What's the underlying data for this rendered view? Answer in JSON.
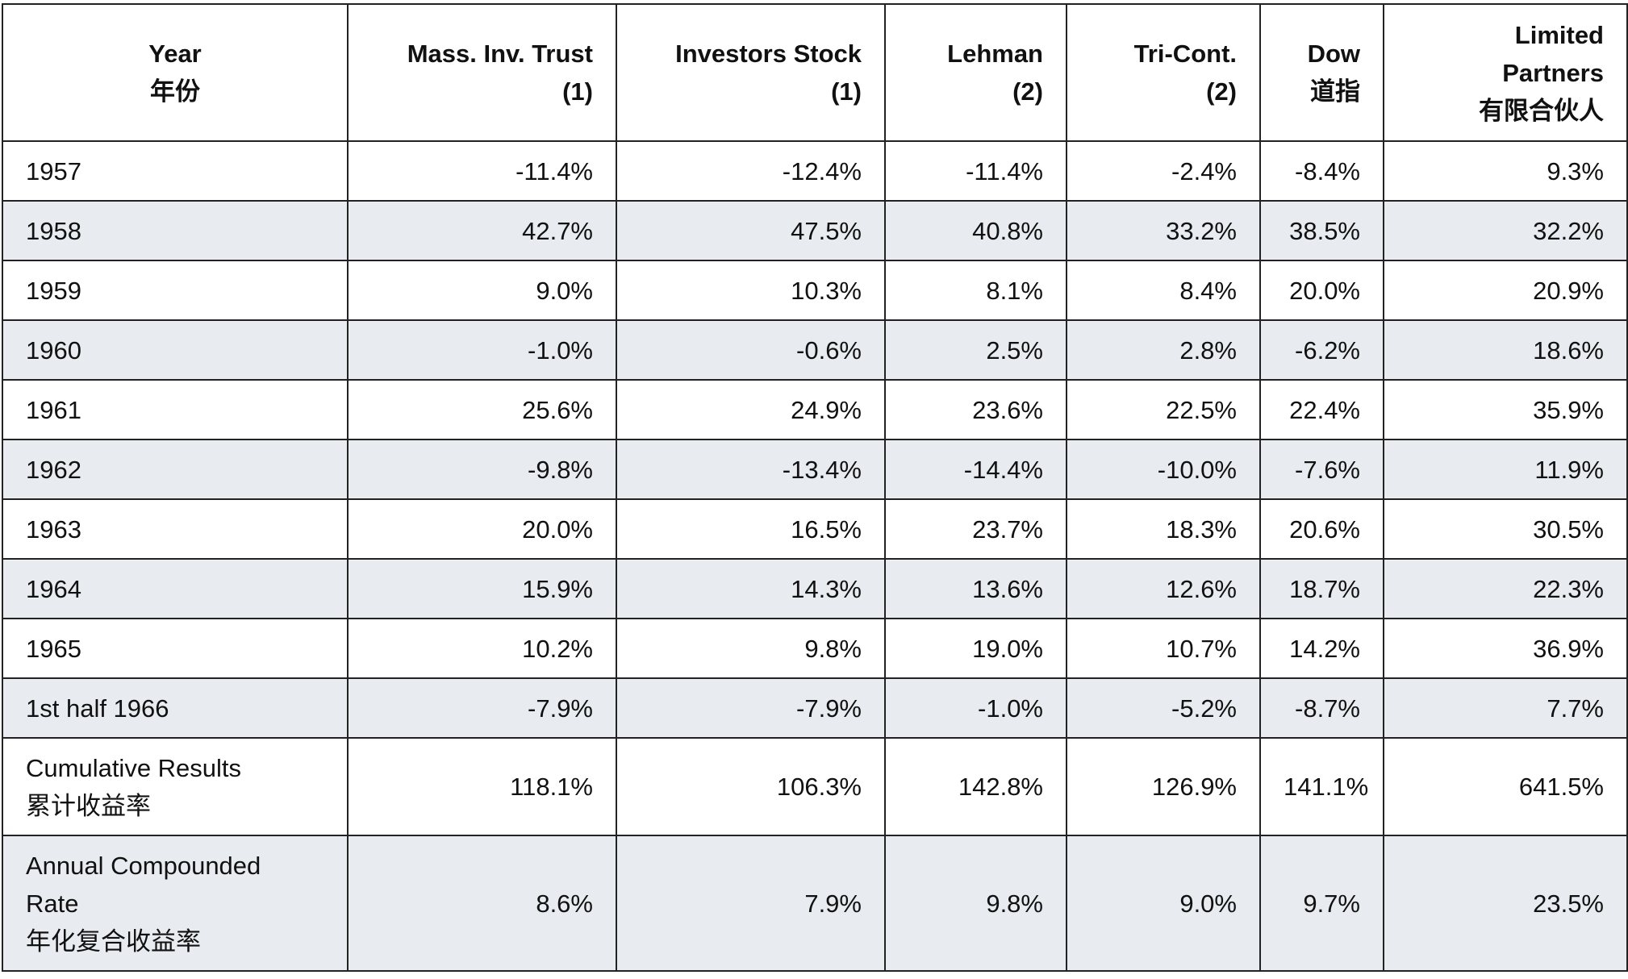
{
  "table": {
    "headers": [
      {
        "lines": [
          "Year",
          "年份"
        ]
      },
      {
        "lines": [
          "Mass. Inv. Trust",
          "(1)"
        ]
      },
      {
        "lines": [
          "Investors Stock",
          "(1)"
        ]
      },
      {
        "lines": [
          "Lehman",
          "(2)"
        ]
      },
      {
        "lines": [
          "Tri-Cont.",
          "(2)"
        ]
      },
      {
        "lines": [
          "Dow",
          "道指"
        ]
      },
      {
        "lines": [
          "Limited",
          "Partners",
          "有限合伙人"
        ]
      }
    ],
    "rows": [
      {
        "label": [
          "1957"
        ],
        "values": [
          "-11.4%",
          "-12.4%",
          "-11.4%",
          "-2.4%",
          "-8.4%",
          "9.3%"
        ]
      },
      {
        "label": [
          "1958"
        ],
        "values": [
          "42.7%",
          "47.5%",
          "40.8%",
          "33.2%",
          "38.5%",
          "32.2%"
        ]
      },
      {
        "label": [
          "1959"
        ],
        "values": [
          "9.0%",
          "10.3%",
          "8.1%",
          "8.4%",
          "20.0%",
          "20.9%"
        ]
      },
      {
        "label": [
          "1960"
        ],
        "values": [
          "-1.0%",
          "-0.6%",
          "2.5%",
          "2.8%",
          "-6.2%",
          "18.6%"
        ]
      },
      {
        "label": [
          "1961"
        ],
        "values": [
          "25.6%",
          "24.9%",
          "23.6%",
          "22.5%",
          "22.4%",
          "35.9%"
        ]
      },
      {
        "label": [
          "1962"
        ],
        "values": [
          "-9.8%",
          "-13.4%",
          "-14.4%",
          "-10.0%",
          "-7.6%",
          "11.9%"
        ]
      },
      {
        "label": [
          "1963"
        ],
        "values": [
          "20.0%",
          "16.5%",
          "23.7%",
          "18.3%",
          "20.6%",
          "30.5%"
        ]
      },
      {
        "label": [
          "1964"
        ],
        "values": [
          "15.9%",
          "14.3%",
          "13.6%",
          "12.6%",
          "18.7%",
          "22.3%"
        ]
      },
      {
        "label": [
          "1965"
        ],
        "values": [
          "10.2%",
          "9.8%",
          "19.0%",
          "10.7%",
          "14.2%",
          "36.9%"
        ]
      },
      {
        "label": [
          "1st half 1966"
        ],
        "values": [
          "-7.9%",
          "-7.9%",
          "-1.0%",
          "-5.2%",
          "-8.7%",
          "7.7%"
        ]
      },
      {
        "label": [
          "Cumulative Results",
          "累计收益率"
        ],
        "values": [
          "118.1%",
          "106.3%",
          "142.8%",
          "126.9%",
          "141.1%",
          "641.5%"
        ]
      },
      {
        "label": [
          "Annual Compounded",
          "Rate",
          "年化复合收益率"
        ],
        "values": [
          "8.6%",
          "7.9%",
          "9.8%",
          "9.0%",
          "9.7%",
          "23.5%"
        ]
      }
    ]
  }
}
